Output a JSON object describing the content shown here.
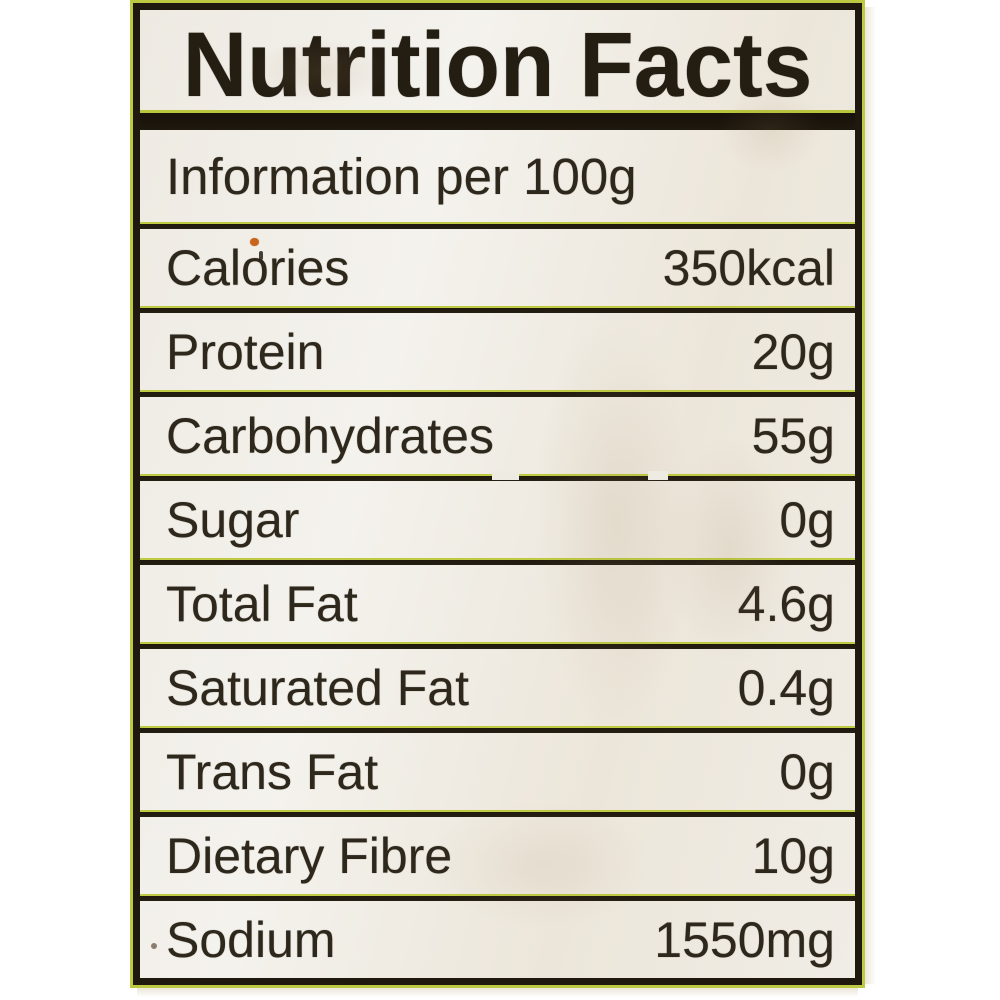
{
  "label": {
    "title": "Nutrition Facts",
    "serving_info": "Information per 100g",
    "rows": [
      {
        "name": "Calories",
        "value": "350kcal"
      },
      {
        "name": "Protein",
        "value": "20g"
      },
      {
        "name": "Carbohydrates",
        "value": "55g"
      },
      {
        "name": "Sugar",
        "value": "0g"
      },
      {
        "name": "Total Fat",
        "value": "4.6g"
      },
      {
        "name": "Saturated Fat",
        "value": "0.4g"
      },
      {
        "name": "Trans Fat",
        "value": "0g"
      },
      {
        "name": "Dietary Fibre",
        "value": "10g"
      },
      {
        "name": "Sodium",
        "value": "1550mg"
      }
    ],
    "colors": {
      "ink": "#2e271c",
      "frame_black": "#1e180e",
      "edge_fringe_green": "#bdc943",
      "label_background": "#f0ede6",
      "page_background": "#ffffff",
      "stain_brown": "#9e8056",
      "speck_orange": "#c8641e"
    }
  }
}
